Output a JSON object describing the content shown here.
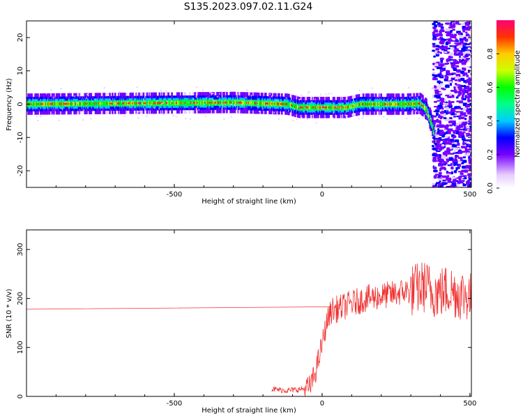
{
  "figure": {
    "title": "S135.2023.097.02.11.G24"
  },
  "chart_data": [
    {
      "type": "heatmap",
      "xlabel": "Height of straight line (km)",
      "ylabel": "Frequency (Hz)",
      "xlim": [
        -1000,
        505
      ],
      "ylim": [
        -25,
        25
      ],
      "xticks": [
        -500,
        0,
        500
      ],
      "yticks": [
        -20,
        -10,
        0,
        10,
        20
      ],
      "grid": false,
      "colorbar": {
        "label": "Normalized spectral amplitude",
        "range": [
          0,
          1
        ],
        "ticks": [
          "0.0",
          "0.2",
          "0.4",
          "0.6",
          "0.8"
        ]
      },
      "ridge_center_hz": [
        [
          -1000,
          0.0
        ],
        [
          -600,
          0.3
        ],
        [
          -300,
          0.5
        ],
        [
          -120,
          0.0
        ],
        [
          -80,
          -1.0
        ],
        [
          0,
          -1.0
        ],
        [
          80,
          -1.0
        ],
        [
          130,
          0.0
        ],
        [
          280,
          0.0
        ],
        [
          330,
          0.2
        ],
        [
          350,
          -1.5
        ],
        [
          370,
          -6.0
        ],
        [
          385,
          -12.0
        ]
      ],
      "noise_region_km": [
        370,
        505
      ]
    },
    {
      "type": "line",
      "xlabel": "Height of straight line (km)",
      "ylabel": "SNR (10 * v/v)",
      "xlim": [
        -1000,
        505
      ],
      "ylim": [
        0,
        340
      ],
      "xticks": [
        -500,
        0,
        500
      ],
      "yticks": [
        0,
        100,
        200,
        300
      ],
      "grid": false,
      "series_color": "#f03232",
      "series": [
        {
          "x": [
            -1000,
            30,
            -170,
            -120,
            -80,
            -50,
            -40,
            -25,
            -10,
            5,
            15,
            30,
            60,
            100,
            150,
            200,
            250,
            280,
            300,
            330,
            350,
            370,
            400,
            430,
            460,
            490,
            505
          ],
          "y": [
            178,
            183,
            15,
            12,
            14,
            17,
            20,
            45,
            80,
            120,
            150,
            175,
            180,
            190,
            200,
            205,
            210,
            215,
            215,
            222,
            225,
            215,
            212,
            218,
            210,
            208,
            200
          ]
        }
      ]
    }
  ]
}
